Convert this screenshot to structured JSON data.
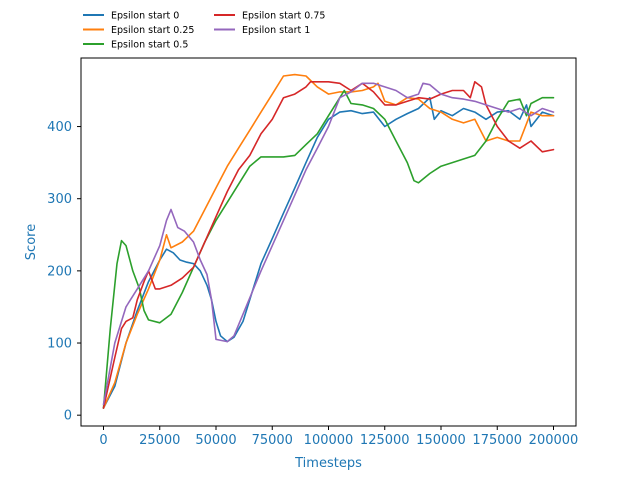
{
  "chart_data": {
    "type": "line",
    "title": "",
    "xlabel": "Timesteps",
    "ylabel": "Score",
    "xlim": [
      -10000,
      210000
    ],
    "ylim": [
      -15,
      495
    ],
    "xticks": [
      0,
      25000,
      50000,
      75000,
      100000,
      125000,
      150000,
      175000,
      200000
    ],
    "yticks": [
      0,
      100,
      200,
      300,
      400
    ],
    "grid": false,
    "legend": {
      "placement": "above-left",
      "columns": 2
    },
    "colors": {
      "label": "#1f77b4",
      "axis": "#000000"
    },
    "series": [
      {
        "name": "Epsilon start 0",
        "color": "#1f77b4",
        "points": [
          [
            0,
            10
          ],
          [
            5000,
            40
          ],
          [
            10000,
            100
          ],
          [
            15000,
            145
          ],
          [
            20000,
            185
          ],
          [
            25000,
            215
          ],
          [
            28000,
            230
          ],
          [
            31000,
            225
          ],
          [
            34000,
            215
          ],
          [
            37000,
            212
          ],
          [
            40000,
            210
          ],
          [
            43000,
            200
          ],
          [
            46000,
            180
          ],
          [
            48000,
            160
          ],
          [
            50000,
            130
          ],
          [
            52000,
            110
          ],
          [
            55000,
            102
          ],
          [
            58000,
            108
          ],
          [
            62000,
            130
          ],
          [
            66000,
            170
          ],
          [
            70000,
            210
          ],
          [
            75000,
            245
          ],
          [
            80000,
            280
          ],
          [
            85000,
            315
          ],
          [
            90000,
            350
          ],
          [
            95000,
            385
          ],
          [
            100000,
            410
          ],
          [
            105000,
            420
          ],
          [
            110000,
            422
          ],
          [
            115000,
            418
          ],
          [
            120000,
            420
          ],
          [
            125000,
            400
          ],
          [
            130000,
            410
          ],
          [
            135000,
            418
          ],
          [
            140000,
            425
          ],
          [
            145000,
            440
          ],
          [
            147000,
            410
          ],
          [
            150000,
            422
          ],
          [
            155000,
            415
          ],
          [
            160000,
            425
          ],
          [
            165000,
            420
          ],
          [
            170000,
            410
          ],
          [
            175000,
            420
          ],
          [
            180000,
            422
          ],
          [
            185000,
            410
          ],
          [
            188000,
            430
          ],
          [
            190000,
            400
          ],
          [
            195000,
            420
          ],
          [
            200000,
            415
          ]
        ]
      },
      {
        "name": "Epsilon start 0.25",
        "color": "#ff7f0e",
        "points": [
          [
            0,
            10
          ],
          [
            5000,
            45
          ],
          [
            10000,
            100
          ],
          [
            15000,
            140
          ],
          [
            20000,
            175
          ],
          [
            25000,
            215
          ],
          [
            28000,
            250
          ],
          [
            30000,
            232
          ],
          [
            35000,
            240
          ],
          [
            40000,
            255
          ],
          [
            45000,
            285
          ],
          [
            50000,
            315
          ],
          [
            55000,
            345
          ],
          [
            60000,
            370
          ],
          [
            65000,
            395
          ],
          [
            70000,
            420
          ],
          [
            75000,
            445
          ],
          [
            80000,
            470
          ],
          [
            85000,
            472
          ],
          [
            90000,
            470
          ],
          [
            95000,
            455
          ],
          [
            100000,
            445
          ],
          [
            105000,
            448
          ],
          [
            110000,
            448
          ],
          [
            115000,
            450
          ],
          [
            120000,
            455
          ],
          [
            122000,
            460
          ],
          [
            125000,
            435
          ],
          [
            130000,
            430
          ],
          [
            135000,
            440
          ],
          [
            140000,
            438
          ],
          [
            145000,
            425
          ],
          [
            150000,
            420
          ],
          [
            155000,
            410
          ],
          [
            160000,
            405
          ],
          [
            165000,
            410
          ],
          [
            170000,
            380
          ],
          [
            175000,
            385
          ],
          [
            180000,
            380
          ],
          [
            185000,
            380
          ],
          [
            190000,
            420
          ],
          [
            195000,
            415
          ],
          [
            200000,
            415
          ]
        ]
      },
      {
        "name": "Epsilon start 0.5",
        "color": "#2ca02c",
        "points": [
          [
            0,
            10
          ],
          [
            3000,
            120
          ],
          [
            6000,
            210
          ],
          [
            8000,
            242
          ],
          [
            10000,
            235
          ],
          [
            13000,
            200
          ],
          [
            16000,
            175
          ],
          [
            18000,
            145
          ],
          [
            20000,
            132
          ],
          [
            25000,
            128
          ],
          [
            30000,
            140
          ],
          [
            35000,
            170
          ],
          [
            40000,
            205
          ],
          [
            45000,
            240
          ],
          [
            50000,
            270
          ],
          [
            55000,
            295
          ],
          [
            60000,
            320
          ],
          [
            65000,
            345
          ],
          [
            70000,
            358
          ],
          [
            75000,
            358
          ],
          [
            80000,
            358
          ],
          [
            85000,
            360
          ],
          [
            90000,
            375
          ],
          [
            95000,
            390
          ],
          [
            100000,
            415
          ],
          [
            105000,
            440
          ],
          [
            107000,
            450
          ],
          [
            110000,
            432
          ],
          [
            115000,
            430
          ],
          [
            120000,
            425
          ],
          [
            125000,
            410
          ],
          [
            130000,
            380
          ],
          [
            135000,
            350
          ],
          [
            138000,
            325
          ],
          [
            140000,
            322
          ],
          [
            145000,
            335
          ],
          [
            150000,
            345
          ],
          [
            155000,
            350
          ],
          [
            160000,
            355
          ],
          [
            165000,
            360
          ],
          [
            170000,
            380
          ],
          [
            175000,
            410
          ],
          [
            180000,
            435
          ],
          [
            185000,
            438
          ],
          [
            188000,
            415
          ],
          [
            190000,
            432
          ],
          [
            195000,
            440
          ],
          [
            200000,
            440
          ]
        ]
      },
      {
        "name": "Epsilon start 0.75",
        "color": "#d62728",
        "points": [
          [
            0,
            10
          ],
          [
            5000,
            80
          ],
          [
            8000,
            120
          ],
          [
            10000,
            130
          ],
          [
            13000,
            135
          ],
          [
            15000,
            160
          ],
          [
            18000,
            185
          ],
          [
            20000,
            200
          ],
          [
            23000,
            175
          ],
          [
            25000,
            175
          ],
          [
            30000,
            180
          ],
          [
            35000,
            190
          ],
          [
            40000,
            205
          ],
          [
            45000,
            240
          ],
          [
            50000,
            275
          ],
          [
            55000,
            310
          ],
          [
            60000,
            340
          ],
          [
            65000,
            360
          ],
          [
            70000,
            390
          ],
          [
            75000,
            410
          ],
          [
            80000,
            440
          ],
          [
            85000,
            445
          ],
          [
            90000,
            455
          ],
          [
            92000,
            462
          ],
          [
            95000,
            462
          ],
          [
            100000,
            462
          ],
          [
            105000,
            460
          ],
          [
            110000,
            450
          ],
          [
            115000,
            460
          ],
          [
            120000,
            448
          ],
          [
            125000,
            430
          ],
          [
            130000,
            430
          ],
          [
            135000,
            435
          ],
          [
            140000,
            440
          ],
          [
            145000,
            438
          ],
          [
            150000,
            445
          ],
          [
            155000,
            450
          ],
          [
            160000,
            450
          ],
          [
            163000,
            440
          ],
          [
            165000,
            462
          ],
          [
            168000,
            455
          ],
          [
            170000,
            430
          ],
          [
            175000,
            400
          ],
          [
            180000,
            380
          ],
          [
            185000,
            370
          ],
          [
            190000,
            380
          ],
          [
            195000,
            365
          ],
          [
            200000,
            368
          ]
        ]
      },
      {
        "name": "Epsilon start 1",
        "color": "#9467bd",
        "points": [
          [
            0,
            15
          ],
          [
            5000,
            100
          ],
          [
            10000,
            150
          ],
          [
            15000,
            175
          ],
          [
            20000,
            200
          ],
          [
            25000,
            235
          ],
          [
            28000,
            270
          ],
          [
            30000,
            285
          ],
          [
            33000,
            260
          ],
          [
            36000,
            255
          ],
          [
            40000,
            240
          ],
          [
            43000,
            215
          ],
          [
            46000,
            195
          ],
          [
            48000,
            160
          ],
          [
            50000,
            105
          ],
          [
            55000,
            102
          ],
          [
            58000,
            110
          ],
          [
            62000,
            140
          ],
          [
            66000,
            170
          ],
          [
            70000,
            200
          ],
          [
            75000,
            235
          ],
          [
            80000,
            270
          ],
          [
            85000,
            305
          ],
          [
            90000,
            340
          ],
          [
            95000,
            370
          ],
          [
            100000,
            400
          ],
          [
            105000,
            440
          ],
          [
            110000,
            448
          ],
          [
            115000,
            460
          ],
          [
            120000,
            460
          ],
          [
            125000,
            455
          ],
          [
            130000,
            450
          ],
          [
            135000,
            440
          ],
          [
            140000,
            445
          ],
          [
            142000,
            460
          ],
          [
            145000,
            458
          ],
          [
            150000,
            445
          ],
          [
            155000,
            440
          ],
          [
            160000,
            438
          ],
          [
            165000,
            435
          ],
          [
            170000,
            430
          ],
          [
            175000,
            425
          ],
          [
            180000,
            420
          ],
          [
            185000,
            425
          ],
          [
            190000,
            415
          ],
          [
            195000,
            425
          ],
          [
            200000,
            420
          ]
        ]
      }
    ]
  }
}
